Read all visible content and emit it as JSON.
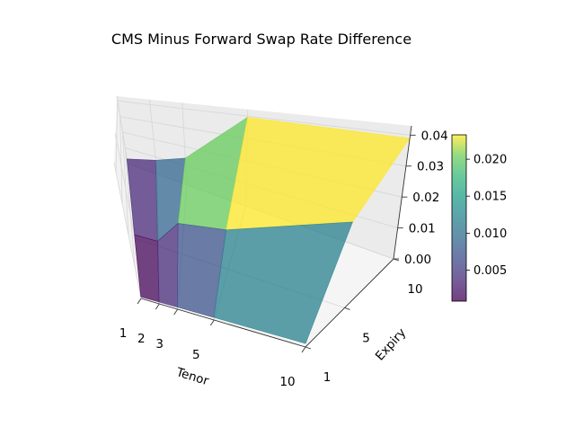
{
  "chart_data": {
    "type": "surface3d",
    "title": "CMS Minus Forward Swap Rate Difference",
    "xlabel": "Tenor",
    "ylabel": "Expiry",
    "zlabel": "",
    "x_ticks": [
      "1",
      "2",
      "3",
      "5",
      "10"
    ],
    "y_ticks": [
      "1",
      "5",
      "10"
    ],
    "z_ticks": [
      "0.00",
      "0.01",
      "0.02",
      "0.03",
      "0.04"
    ],
    "zlim": [
      0.0,
      0.043
    ],
    "colorbar": {
      "colormap": "viridis",
      "range": [
        0.0008,
        0.0233
      ],
      "ticks": [
        "0.005",
        "0.010",
        "0.015",
        "0.020"
      ]
    },
    "surface": {
      "tenors": [
        1,
        2,
        3,
        5,
        10
      ],
      "expiries": [
        1,
        5,
        10
      ],
      "z": [
        [
          0.0005,
          0.0006,
          0.0007,
          0.0009,
          0.0013
        ],
        [
          0.0015,
          0.002,
          0.012,
          0.015,
          0.03
        ],
        [
          0.003,
          0.008,
          0.014,
          0.0395,
          0.039
        ]
      ]
    }
  }
}
